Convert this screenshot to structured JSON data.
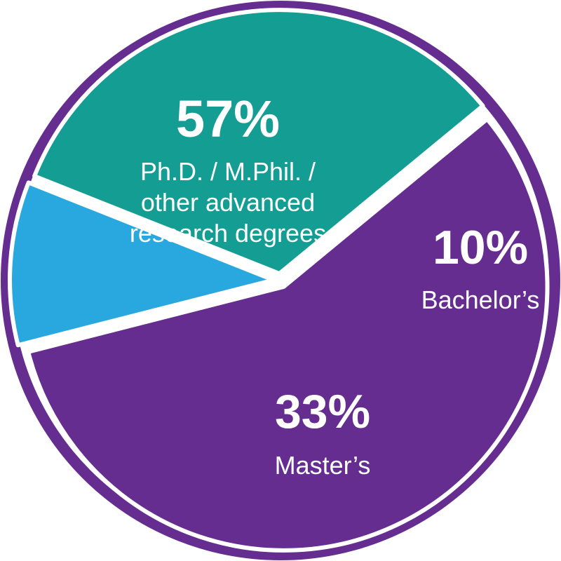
{
  "chart_data": {
    "type": "pie",
    "title": "",
    "slices": [
      {
        "label_lines": [
          "Ph.D. / M.Phil. /",
          "other advanced",
          "research degrees"
        ],
        "value": 57,
        "value_label": "57%",
        "color": "#652d90"
      },
      {
        "label_lines": [
          "Bachelor’s"
        ],
        "value": 10,
        "value_label": "10%",
        "color": "#29a8e0"
      },
      {
        "label_lines": [
          "Master’s"
        ],
        "value": 33,
        "value_label": "33%",
        "color": "#139d93"
      }
    ],
    "legend": "none",
    "ring_color": "#652d90",
    "separator_color": "#ffffff"
  }
}
